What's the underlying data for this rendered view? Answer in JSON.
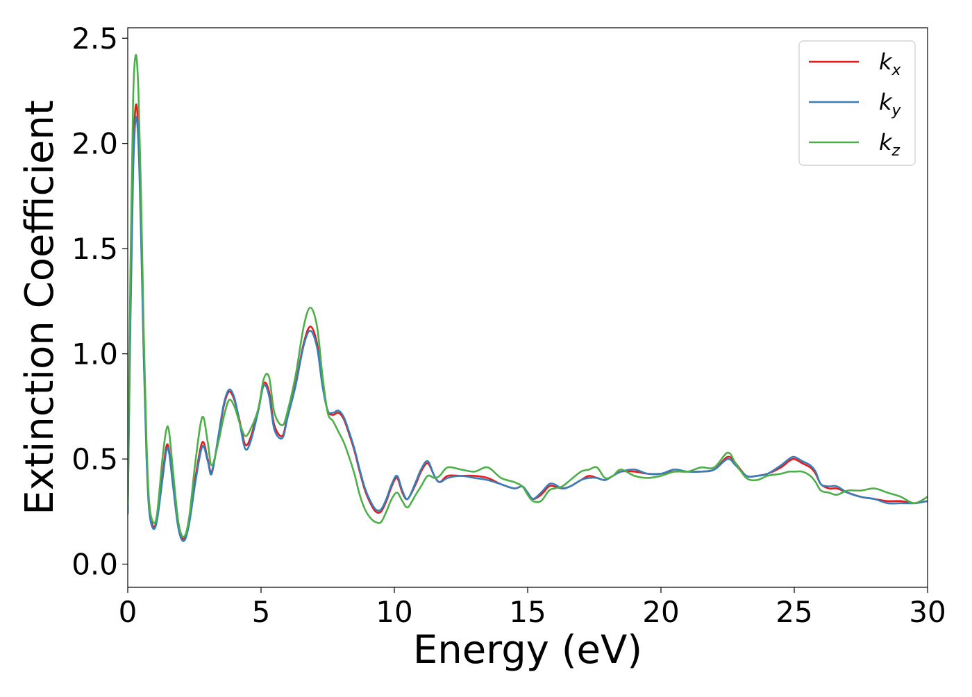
{
  "chart_data": {
    "type": "line",
    "xlabel": "Energy (eV)",
    "ylabel": "Extinction Coefficient",
    "xlim": [
      0,
      30
    ],
    "ylim": [
      -0.11,
      2.55
    ],
    "xticks": [
      0,
      5,
      10,
      15,
      20,
      25,
      30
    ],
    "xtick_labels": [
      "0",
      "5",
      "10",
      "15",
      "20",
      "25",
      "30"
    ],
    "yticks": [
      0.0,
      0.5,
      1.0,
      1.5,
      2.0,
      2.5
    ],
    "ytick_labels": [
      "0.0",
      "0.5",
      "1.0",
      "1.5",
      "2.0",
      "2.5"
    ],
    "grid": false,
    "legend_position": "top-right",
    "series": [
      {
        "name": "k_x",
        "label_main": "k",
        "label_sub": "x",
        "color": "#e41a1c",
        "x": [
          0.0,
          0.1,
          0.2,
          0.3,
          0.4,
          0.5,
          0.6,
          0.7,
          0.8,
          0.95,
          1.1,
          1.3,
          1.45,
          1.55,
          1.7,
          1.9,
          2.1,
          2.3,
          2.55,
          2.8,
          3.0,
          3.15,
          3.4,
          3.6,
          3.8,
          4.0,
          4.2,
          4.4,
          4.6,
          4.9,
          5.1,
          5.3,
          5.5,
          5.8,
          6.0,
          6.3,
          6.6,
          6.85,
          7.1,
          7.3,
          7.5,
          7.7,
          7.9,
          8.1,
          8.3,
          8.5,
          8.7,
          8.9,
          9.1,
          9.3,
          9.5,
          9.7,
          9.9,
          10.1,
          10.3,
          10.5,
          10.8,
          11.0,
          11.25,
          11.5,
          11.7,
          12.0,
          12.5,
          13.0,
          13.5,
          14.0,
          14.5,
          14.8,
          15.0,
          15.2,
          15.5,
          15.8,
          16.0,
          16.3,
          16.6,
          17.0,
          17.3,
          17.6,
          17.9,
          18.2,
          18.5,
          19.0,
          19.5,
          20.0,
          20.5,
          21.0,
          21.5,
          22.0,
          22.5,
          22.8,
          23.2,
          23.6,
          24.0,
          24.5,
          24.8,
          25.0,
          25.3,
          25.6,
          25.8,
          26.0,
          26.3,
          26.6,
          27.0,
          27.5,
          28.0,
          28.5,
          29.0,
          29.5,
          30.0
        ],
        "y": [
          0.25,
          1.2,
          1.9,
          2.18,
          2.05,
          1.6,
          1.0,
          0.55,
          0.28,
          0.18,
          0.22,
          0.42,
          0.56,
          0.54,
          0.38,
          0.18,
          0.12,
          0.2,
          0.42,
          0.58,
          0.5,
          0.44,
          0.6,
          0.75,
          0.82,
          0.78,
          0.68,
          0.57,
          0.6,
          0.74,
          0.86,
          0.82,
          0.66,
          0.61,
          0.71,
          0.86,
          1.05,
          1.13,
          1.05,
          0.86,
          0.73,
          0.71,
          0.72,
          0.69,
          0.62,
          0.54,
          0.44,
          0.35,
          0.29,
          0.25,
          0.25,
          0.3,
          0.37,
          0.41,
          0.34,
          0.31,
          0.38,
          0.44,
          0.48,
          0.42,
          0.39,
          0.42,
          0.42,
          0.42,
          0.41,
          0.38,
          0.36,
          0.37,
          0.34,
          0.31,
          0.33,
          0.37,
          0.37,
          0.36,
          0.37,
          0.4,
          0.42,
          0.41,
          0.4,
          0.42,
          0.44,
          0.44,
          0.43,
          0.43,
          0.44,
          0.44,
          0.44,
          0.45,
          0.51,
          0.48,
          0.42,
          0.42,
          0.43,
          0.46,
          0.49,
          0.5,
          0.48,
          0.46,
          0.43,
          0.38,
          0.36,
          0.36,
          0.34,
          0.32,
          0.31,
          0.3,
          0.3,
          0.29,
          0.3
        ]
      },
      {
        "name": "k_y",
        "label_main": "k",
        "label_sub": "y",
        "color": "#377eb8",
        "x": [
          0.0,
          0.1,
          0.2,
          0.3,
          0.4,
          0.5,
          0.6,
          0.7,
          0.8,
          0.95,
          1.1,
          1.3,
          1.45,
          1.55,
          1.7,
          1.9,
          2.1,
          2.3,
          2.55,
          2.8,
          3.0,
          3.15,
          3.4,
          3.6,
          3.8,
          4.0,
          4.2,
          4.4,
          4.6,
          4.9,
          5.1,
          5.3,
          5.5,
          5.8,
          6.0,
          6.3,
          6.6,
          6.85,
          7.1,
          7.3,
          7.5,
          7.7,
          7.9,
          8.1,
          8.3,
          8.5,
          8.7,
          8.9,
          9.1,
          9.3,
          9.5,
          9.7,
          9.9,
          10.1,
          10.3,
          10.5,
          10.8,
          11.0,
          11.25,
          11.5,
          11.7,
          12.0,
          12.5,
          13.0,
          13.5,
          14.0,
          14.5,
          14.8,
          15.0,
          15.2,
          15.5,
          15.8,
          16.0,
          16.3,
          16.6,
          17.0,
          17.3,
          17.6,
          17.9,
          18.2,
          18.5,
          19.0,
          19.5,
          20.0,
          20.5,
          21.0,
          21.5,
          22.0,
          22.5,
          22.8,
          23.2,
          23.6,
          24.0,
          24.5,
          24.8,
          25.0,
          25.3,
          25.6,
          25.8,
          26.0,
          26.3,
          26.6,
          27.0,
          27.5,
          28.0,
          28.5,
          29.0,
          29.5,
          30.0
        ],
        "y": [
          0.24,
          1.15,
          1.85,
          2.12,
          2.0,
          1.55,
          0.98,
          0.52,
          0.26,
          0.17,
          0.21,
          0.4,
          0.54,
          0.53,
          0.37,
          0.17,
          0.11,
          0.19,
          0.4,
          0.56,
          0.49,
          0.43,
          0.61,
          0.76,
          0.83,
          0.79,
          0.67,
          0.55,
          0.58,
          0.73,
          0.85,
          0.8,
          0.64,
          0.6,
          0.7,
          0.85,
          1.04,
          1.11,
          1.03,
          0.85,
          0.73,
          0.72,
          0.73,
          0.7,
          0.63,
          0.55,
          0.45,
          0.36,
          0.3,
          0.26,
          0.26,
          0.31,
          0.38,
          0.42,
          0.35,
          0.31,
          0.39,
          0.45,
          0.49,
          0.42,
          0.39,
          0.41,
          0.42,
          0.41,
          0.4,
          0.38,
          0.36,
          0.37,
          0.34,
          0.31,
          0.34,
          0.38,
          0.38,
          0.36,
          0.37,
          0.4,
          0.41,
          0.41,
          0.4,
          0.42,
          0.44,
          0.45,
          0.43,
          0.43,
          0.45,
          0.44,
          0.44,
          0.45,
          0.5,
          0.47,
          0.42,
          0.42,
          0.43,
          0.47,
          0.5,
          0.51,
          0.49,
          0.47,
          0.44,
          0.38,
          0.37,
          0.37,
          0.34,
          0.32,
          0.31,
          0.29,
          0.29,
          0.29,
          0.3
        ]
      },
      {
        "name": "k_z",
        "label_main": "k",
        "label_sub": "z",
        "color": "#4daf4a",
        "x": [
          0.0,
          0.1,
          0.2,
          0.3,
          0.4,
          0.5,
          0.6,
          0.7,
          0.8,
          0.95,
          1.1,
          1.3,
          1.45,
          1.55,
          1.7,
          1.9,
          2.1,
          2.3,
          2.55,
          2.8,
          3.0,
          3.15,
          3.4,
          3.6,
          3.8,
          4.0,
          4.2,
          4.4,
          4.6,
          4.9,
          5.1,
          5.3,
          5.5,
          5.8,
          6.0,
          6.3,
          6.6,
          6.85,
          7.1,
          7.3,
          7.5,
          7.7,
          7.9,
          8.1,
          8.3,
          8.5,
          8.7,
          8.9,
          9.1,
          9.3,
          9.5,
          9.7,
          9.9,
          10.1,
          10.3,
          10.5,
          10.8,
          11.0,
          11.25,
          11.5,
          11.7,
          12.0,
          12.5,
          13.0,
          13.5,
          14.0,
          14.5,
          14.8,
          15.0,
          15.2,
          15.5,
          15.8,
          16.0,
          16.3,
          16.6,
          17.0,
          17.3,
          17.6,
          17.9,
          18.2,
          18.5,
          19.0,
          19.5,
          20.0,
          20.5,
          21.0,
          21.5,
          22.0,
          22.5,
          22.8,
          23.2,
          23.6,
          24.0,
          24.5,
          24.8,
          25.0,
          25.3,
          25.6,
          25.8,
          26.0,
          26.3,
          26.6,
          27.0,
          27.5,
          28.0,
          28.5,
          29.0,
          29.5,
          30.0
        ],
        "y": [
          0.28,
          1.4,
          2.2,
          2.42,
          2.25,
          1.75,
          1.1,
          0.6,
          0.3,
          0.2,
          0.24,
          0.5,
          0.64,
          0.63,
          0.44,
          0.2,
          0.13,
          0.22,
          0.5,
          0.7,
          0.58,
          0.47,
          0.58,
          0.7,
          0.78,
          0.75,
          0.67,
          0.61,
          0.64,
          0.74,
          0.88,
          0.89,
          0.72,
          0.66,
          0.73,
          0.9,
          1.13,
          1.22,
          1.13,
          0.9,
          0.72,
          0.68,
          0.63,
          0.58,
          0.51,
          0.43,
          0.33,
          0.26,
          0.22,
          0.2,
          0.2,
          0.25,
          0.31,
          0.34,
          0.3,
          0.27,
          0.33,
          0.37,
          0.42,
          0.41,
          0.42,
          0.46,
          0.45,
          0.44,
          0.46,
          0.41,
          0.39,
          0.37,
          0.33,
          0.3,
          0.3,
          0.35,
          0.36,
          0.37,
          0.4,
          0.44,
          0.45,
          0.46,
          0.41,
          0.42,
          0.45,
          0.42,
          0.41,
          0.42,
          0.44,
          0.44,
          0.46,
          0.46,
          0.53,
          0.48,
          0.41,
          0.4,
          0.42,
          0.43,
          0.44,
          0.44,
          0.44,
          0.42,
          0.39,
          0.35,
          0.34,
          0.33,
          0.35,
          0.35,
          0.36,
          0.34,
          0.32,
          0.29,
          0.32
        ]
      }
    ]
  }
}
